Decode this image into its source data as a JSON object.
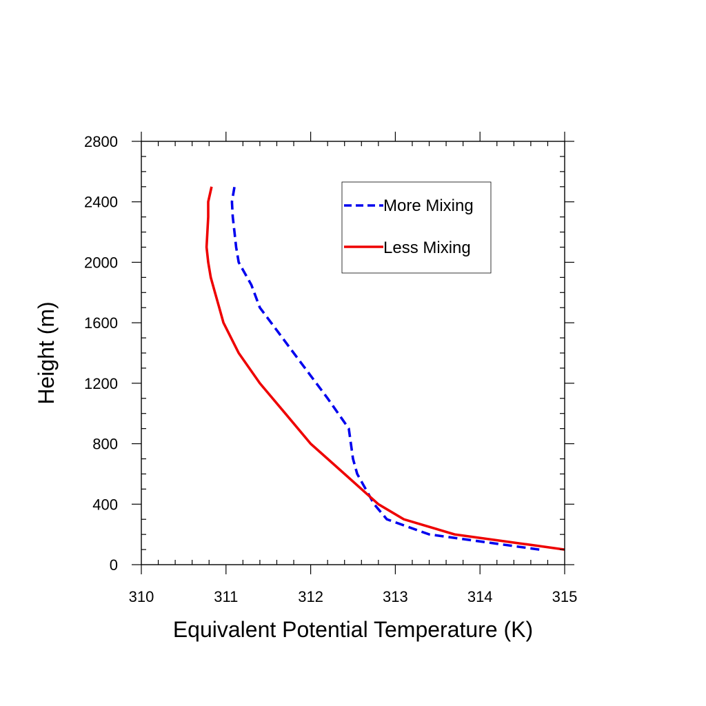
{
  "chart_data": {
    "type": "line",
    "title": "",
    "xlabel": "Equivalent Potential Temperature (K)",
    "ylabel": "Height (m)",
    "xlim": [
      310,
      315
    ],
    "ylim": [
      0,
      2800
    ],
    "x_ticks": [
      310,
      311,
      312,
      313,
      314,
      315
    ],
    "y_ticks": [
      0,
      400,
      800,
      1200,
      1600,
      2000,
      2400,
      2800
    ],
    "x_tick_labels": [
      "310",
      "311",
      "312",
      "313",
      "314",
      "315"
    ],
    "y_tick_labels": [
      "0",
      "400",
      "800",
      "1200",
      "1600",
      "2000",
      "2400",
      "2800"
    ],
    "grid": false,
    "legend_position": "top-right",
    "series": [
      {
        "name": "More Mixing",
        "color": "#0000ee",
        "dash": "dashed",
        "points": [
          [
            314.7,
            100
          ],
          [
            313.4,
            200
          ],
          [
            312.9,
            300
          ],
          [
            312.75,
            400
          ],
          [
            312.65,
            500
          ],
          [
            312.55,
            600
          ],
          [
            312.5,
            700
          ],
          [
            312.45,
            900
          ],
          [
            312.2,
            1100
          ],
          [
            312.0,
            1250
          ],
          [
            311.8,
            1400
          ],
          [
            311.6,
            1550
          ],
          [
            311.4,
            1700
          ],
          [
            311.3,
            1850
          ],
          [
            311.15,
            2000
          ],
          [
            311.12,
            2100
          ],
          [
            311.1,
            2200
          ],
          [
            311.08,
            2300
          ],
          [
            311.07,
            2400
          ],
          [
            311.1,
            2500
          ]
        ]
      },
      {
        "name": "Less Mixing",
        "color": "#ee0000",
        "dash": "solid",
        "points": [
          [
            315.0,
            100
          ],
          [
            313.7,
            200
          ],
          [
            313.1,
            300
          ],
          [
            312.8,
            400
          ],
          [
            312.4,
            600
          ],
          [
            312.2,
            700
          ],
          [
            312.0,
            800
          ],
          [
            311.7,
            1000
          ],
          [
            311.4,
            1200
          ],
          [
            311.15,
            1400
          ],
          [
            310.97,
            1600
          ],
          [
            310.92,
            1700
          ],
          [
            310.87,
            1800
          ],
          [
            310.82,
            1900
          ],
          [
            310.79,
            2000
          ],
          [
            310.77,
            2100
          ],
          [
            310.78,
            2200
          ],
          [
            310.79,
            2300
          ],
          [
            310.79,
            2400
          ],
          [
            310.83,
            2500
          ]
        ]
      }
    ]
  }
}
